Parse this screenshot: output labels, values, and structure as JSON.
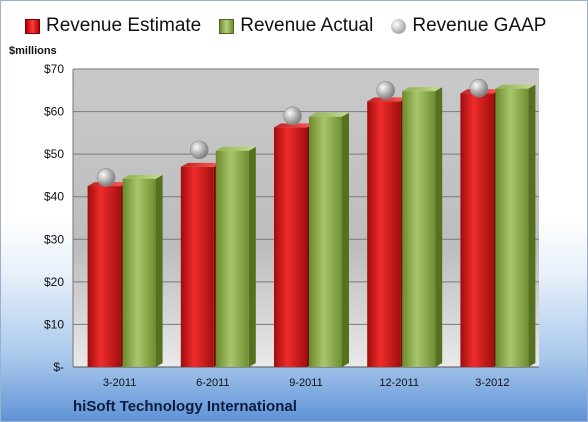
{
  "legend": {
    "estimate": "Revenue Estimate",
    "actual": "Revenue Actual",
    "gaap": "Revenue GAAP"
  },
  "unit_label": "$millions",
  "company": "hiSoft Technology International",
  "colors": {
    "estimate": "#d81e1e",
    "actual": "#8fae4e",
    "gaap": "#b8b8b8",
    "company_text": "#0d1b3e"
  },
  "chart_data": {
    "type": "bar",
    "categories": [
      "3-2011",
      "6-2011",
      "9-2011",
      "12-2011",
      "3-2012"
    ],
    "series": [
      {
        "name": "Revenue Estimate",
        "type": "bar",
        "values": [
          42.5,
          47.0,
          56.3,
          62.4,
          64.3
        ]
      },
      {
        "name": "Revenue Actual",
        "type": "bar",
        "values": [
          44.2,
          50.8,
          58.8,
          64.8,
          65.4
        ]
      },
      {
        "name": "Revenue GAAP",
        "type": "scatter",
        "values": [
          44.5,
          51.0,
          59.0,
          65.0,
          65.5
        ]
      }
    ],
    "ylim": [
      0,
      70
    ],
    "yticks": [
      0,
      10,
      20,
      30,
      40,
      50,
      60,
      70
    ],
    "ytick_labels": [
      "$-",
      "$10",
      "$20",
      "$30",
      "$40",
      "$50",
      "$60",
      "$70"
    ],
    "ylabel": "$millions",
    "xlabel": "",
    "grid": true,
    "legend_position": "top"
  }
}
